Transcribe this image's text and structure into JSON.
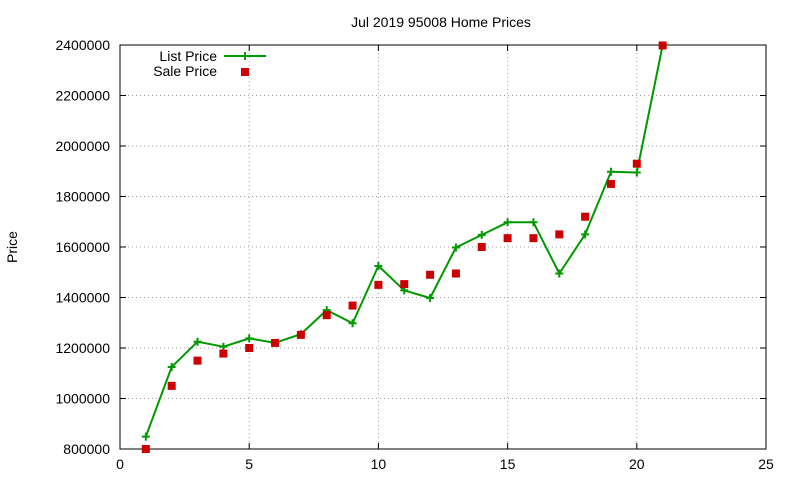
{
  "chart_data": {
    "type": "line",
    "title": "Jul 2019 95008 Home Prices",
    "xlabel": "",
    "ylabel": "Price",
    "xlim": [
      0,
      25
    ],
    "ylim": [
      800000,
      2400000
    ],
    "x_ticks": [
      "0",
      "5",
      "10",
      "15",
      "20",
      "25"
    ],
    "y_ticks": [
      "800000",
      "1000000",
      "1200000",
      "1400000",
      "1600000",
      "1800000",
      "2000000",
      "2200000",
      "2400000"
    ],
    "grid": true,
    "legend_position": "top-left",
    "series": [
      {
        "name": "List Price",
        "style": "line-with-plus-markers",
        "color": "#009900",
        "x": [
          1,
          2,
          3,
          4,
          5,
          6,
          7,
          8,
          9,
          10,
          11,
          12,
          13,
          14,
          15,
          16,
          17,
          18,
          19,
          20,
          21
        ],
        "values": [
          849000,
          1125000,
          1225000,
          1205000,
          1238000,
          1220000,
          1255000,
          1350000,
          1298000,
          1525000,
          1428000,
          1398000,
          1598000,
          1648000,
          1698000,
          1698000,
          1495000,
          1650000,
          1898000,
          1895000,
          2398000
        ]
      },
      {
        "name": "Sale Price",
        "style": "square-markers",
        "color": "#cc0000",
        "x": [
          1,
          2,
          3,
          4,
          5,
          6,
          7,
          8,
          9,
          10,
          11,
          12,
          13,
          14,
          15,
          16,
          17,
          18,
          19,
          20,
          21
        ],
        "values": [
          800000,
          1050000,
          1150000,
          1178000,
          1200000,
          1220000,
          1252000,
          1330000,
          1368000,
          1450000,
          1453000,
          1490000,
          1495000,
          1600000,
          1635000,
          1635000,
          1650000,
          1720000,
          1850000,
          1930000,
          2398000
        ]
      }
    ]
  }
}
